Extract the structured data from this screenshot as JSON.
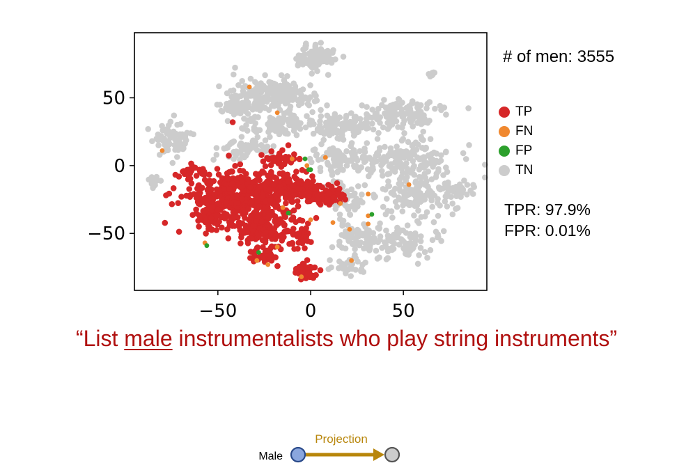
{
  "chart_data": {
    "type": "scatter",
    "title": "",
    "xlabel": "",
    "ylabel": "",
    "xlim": [
      -95,
      95
    ],
    "ylim": [
      -92,
      98
    ],
    "xticks": [
      -50,
      0,
      50
    ],
    "yticks": [
      50,
      0,
      -50
    ],
    "grid": false,
    "legend_placement": "right",
    "series": [
      {
        "name": "TN",
        "color": "#cccccc",
        "clusters": [
          {
            "cx": 2,
            "cy": 80,
            "rx": 12,
            "ry": 9,
            "n": 90
          },
          {
            "cx": -20,
            "cy": 52,
            "rx": 24,
            "ry": 13,
            "n": 190
          },
          {
            "cx": -40,
            "cy": 45,
            "rx": 10,
            "ry": 9,
            "n": 50
          },
          {
            "cx": -18,
            "cy": 30,
            "rx": 16,
            "ry": 8,
            "n": 90
          },
          {
            "cx": -75,
            "cy": 20,
            "rx": 9,
            "ry": 14,
            "n": 65
          },
          {
            "cx": -85,
            "cy": -12,
            "rx": 4,
            "ry": 4,
            "n": 14
          },
          {
            "cx": 18,
            "cy": 28,
            "rx": 20,
            "ry": 10,
            "n": 110
          },
          {
            "cx": 15,
            "cy": 5,
            "rx": 14,
            "ry": 10,
            "n": 80
          },
          {
            "cx": 50,
            "cy": 38,
            "rx": 22,
            "ry": 10,
            "n": 120
          },
          {
            "cx": 50,
            "cy": 5,
            "rx": 26,
            "ry": 14,
            "n": 150
          },
          {
            "cx": 60,
            "cy": -20,
            "rx": 28,
            "ry": 18,
            "n": 150
          },
          {
            "cx": 52,
            "cy": -55,
            "rx": 20,
            "ry": 14,
            "n": 90
          },
          {
            "cx": 18,
            "cy": -25,
            "rx": 12,
            "ry": 14,
            "n": 60
          },
          {
            "cx": 25,
            "cy": -55,
            "rx": 12,
            "ry": 12,
            "n": 60
          },
          {
            "cx": 20,
            "cy": -75,
            "rx": 10,
            "ry": 6,
            "n": 30
          },
          {
            "cx": 65,
            "cy": 68,
            "rx": 3,
            "ry": 3,
            "n": 6
          },
          {
            "cx": 80,
            "cy": -18,
            "rx": 6,
            "ry": 6,
            "n": 16
          },
          {
            "cx": -35,
            "cy": 12,
            "rx": 18,
            "ry": 8,
            "n": 60
          }
        ]
      },
      {
        "name": "TP",
        "color": "#d62728",
        "clusters": [
          {
            "cx": -38,
            "cy": -22,
            "rx": 28,
            "ry": 18,
            "n": 450
          },
          {
            "cx": -25,
            "cy": -48,
            "rx": 18,
            "ry": 14,
            "n": 180
          },
          {
            "cx": -55,
            "cy": -40,
            "rx": 8,
            "ry": 9,
            "n": 50
          },
          {
            "cx": -8,
            "cy": -15,
            "rx": 15,
            "ry": 10,
            "n": 110
          },
          {
            "cx": 8,
            "cy": -22,
            "rx": 10,
            "ry": 7,
            "n": 70
          },
          {
            "cx": -5,
            "cy": -52,
            "rx": 5,
            "ry": 10,
            "n": 35
          },
          {
            "cx": -3,
            "cy": -78,
            "rx": 6,
            "ry": 6,
            "n": 45
          },
          {
            "cx": -25,
            "cy": -68,
            "rx": 8,
            "ry": 6,
            "n": 30
          },
          {
            "cx": -15,
            "cy": 5,
            "rx": 10,
            "ry": 6,
            "n": 35
          },
          {
            "cx": -65,
            "cy": -5,
            "rx": 8,
            "ry": 6,
            "n": 20
          }
        ],
        "points": [
          [
            -42,
            32
          ],
          [
            -12,
            15
          ]
        ]
      },
      {
        "name": "FN",
        "color": "#f0882f",
        "points": [
          [
            -33,
            58
          ],
          [
            -18,
            39
          ],
          [
            -80,
            11
          ],
          [
            -57,
            -57
          ],
          [
            -29,
            -70
          ],
          [
            -23,
            -73
          ],
          [
            -18,
            -60
          ],
          [
            -5,
            -82
          ],
          [
            -2,
            0
          ],
          [
            8,
            6
          ],
          [
            -10,
            5
          ],
          [
            16,
            -28
          ],
          [
            12,
            -42
          ],
          [
            21,
            -47
          ],
          [
            31,
            -37
          ],
          [
            31,
            -43
          ],
          [
            31,
            -21
          ],
          [
            53,
            -14
          ],
          [
            22,
            -70
          ],
          [
            -15,
            -31
          ],
          [
            0,
            -40
          ]
        ]
      },
      {
        "name": "FP",
        "color": "#2ca02c",
        "points": [
          [
            -56,
            -59
          ],
          [
            -3,
            5
          ],
          [
            -1,
            -3
          ],
          [
            0,
            -3
          ],
          [
            33,
            -36
          ],
          [
            -28,
            -64
          ],
          [
            -12,
            -35
          ]
        ]
      }
    ],
    "legend": [
      "TP",
      "FN",
      "FP",
      "TN"
    ]
  },
  "annotations": {
    "men_count": "# of men: 3555",
    "tpr": "TPR: 97.9%",
    "fpr": "FPR: 0.01%"
  },
  "query": {
    "open_quote": "“",
    "before": "List ",
    "emph": "male",
    "after": " instrumentalists who play string instruments",
    "close_quote": "”"
  },
  "diagram": {
    "node_label": "Male",
    "arrow_label": "Projection",
    "source_color": "#8aa6de",
    "source_stroke": "#2a4a8a",
    "target_color": "#cccccc",
    "target_stroke": "#555555",
    "arrow_color": "#b8860b"
  }
}
